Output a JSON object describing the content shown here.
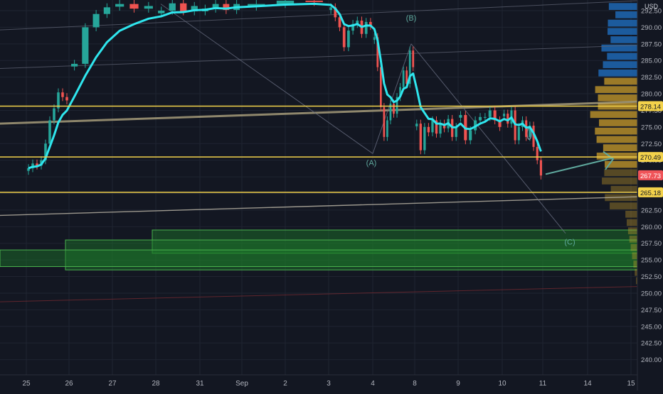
{
  "chart_data": {
    "type": "candlestick",
    "currency": "USD",
    "y_range": [
      237.5,
      293.0
    ],
    "y_ticks": [
      "240.00",
      "242.50",
      "245.00",
      "247.50",
      "250.00",
      "252.50",
      "255.00",
      "257.50",
      "260.00",
      "262.50",
      "265.00",
      "267.50",
      "270.00",
      "272.50",
      "275.00",
      "277.50",
      "280.00",
      "282.50",
      "285.00",
      "287.50",
      "290.00",
      "292.50"
    ],
    "x_ticks": [
      "25",
      "26",
      "27",
      "28",
      "31",
      "Sep",
      "2",
      "3",
      "4",
      "8",
      "9",
      "10",
      "11",
      "14",
      "15"
    ],
    "horizontal_levels": [
      {
        "price": 278.14,
        "label": "278.14"
      },
      {
        "price": 270.49,
        "label": "270.49"
      },
      {
        "price": 265.18,
        "label": "265.18"
      }
    ],
    "current_price": {
      "price": 267.73,
      "label": "267.73"
    },
    "wave_labels": [
      "(A)",
      "(B)",
      "(C)"
    ],
    "trend_line_colors": {
      "horizontal_level": "#f3d24b",
      "current_price": "#f05459",
      "vwap": "#2fe6ee",
      "arrow": "#5fa89d",
      "zone_fill": "#1d7a2a",
      "zone_border": "#49b04d"
    },
    "demand_zones": [
      {
        "price_low": 256.0,
        "price_high": 259.5
      },
      {
        "price_low": 253.5,
        "price_high": 258.0
      },
      {
        "price_low": 254.0,
        "price_high": 256.5
      }
    ],
    "close_series": [
      {
        "x": "25",
        "values": [
          268.8,
          269.5,
          269.2,
          270.0,
          272.5,
          276.0,
          277.8,
          280.2,
          279.5,
          279.0
        ]
      },
      {
        "x": "26",
        "values": [
          284.5,
          290.0,
          292.0,
          293.0
        ]
      },
      {
        "x": "27",
        "values": [
          293.5,
          292.8,
          293.2
        ]
      },
      {
        "x": "28",
        "values": [
          292.5,
          293.6,
          292.4,
          293.2
        ]
      },
      {
        "x": "31",
        "values": [
          292.8,
          293.5,
          292.6,
          293.5
        ]
      },
      {
        "x": "Sep",
        "values": [
          293.5,
          294.0,
          293.8
        ]
      },
      {
        "x": "3",
        "values": [
          293.0,
          291.5,
          290.0,
          287.0,
          289.5,
          290.5,
          291.0,
          289.0,
          290.8,
          290.2
        ]
      },
      {
        "x": "4",
        "values": [
          288.5,
          284.0,
          278.0,
          273.5,
          276.0,
          278.5,
          277.0,
          279.5,
          281.0,
          283.5,
          281.5,
          286.5,
          284.0
        ]
      },
      {
        "x": "8",
        "values": [
          275.5,
          271.5,
          275.0,
          274.2,
          276.0,
          274.0,
          275.5,
          274.8,
          276.2,
          273.5,
          275.0
        ]
      },
      {
        "x": "9",
        "values": [
          276.8,
          273.0,
          274.5,
          276.0,
          276.5,
          276.5,
          277.5,
          276.0,
          275.0
        ]
      },
      {
        "x": "10",
        "values": [
          277.0,
          275.5,
          277.5,
          273.0,
          275.0,
          276.0,
          273.5,
          275.2,
          272.0,
          270.0,
          267.7
        ]
      }
    ]
  }
}
